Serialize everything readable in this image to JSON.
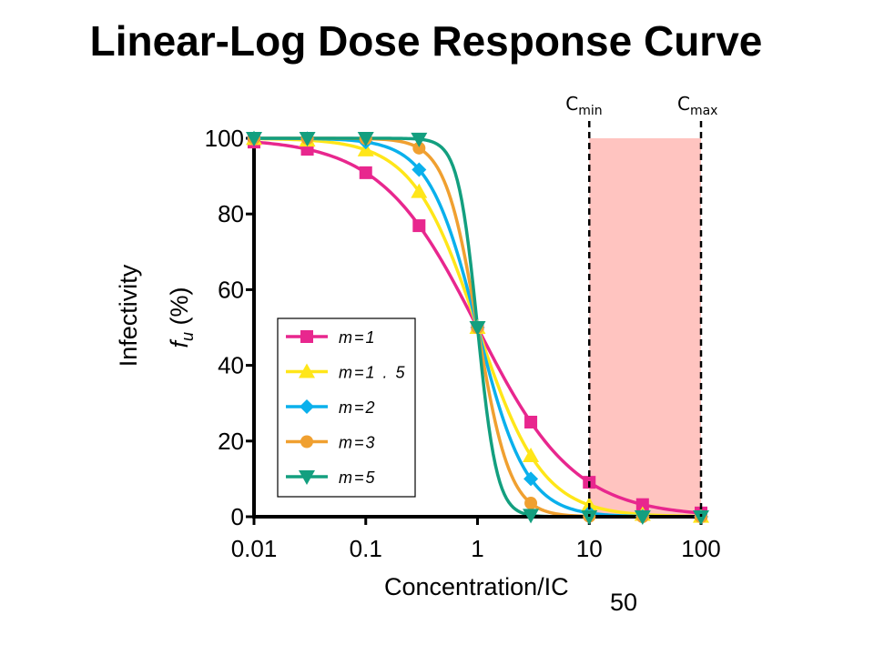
{
  "chart_data": {
    "type": "line",
    "title": "Linear-Log Dose Response Curve",
    "xlabel": "Concentration/IC",
    "xlabel_subscript": "50",
    "ylabel_line1": "Infectivity",
    "ylabel_line2_var": "f",
    "ylabel_line2_sub": "u",
    "ylabel_line2_rest": " (%)",
    "xscale": "log",
    "xlim": [
      0.01,
      100
    ],
    "ylim": [
      0,
      100
    ],
    "x_ticks": [
      0.01,
      0.1,
      1,
      10,
      100
    ],
    "x_tick_labels": [
      "0.01",
      "0.1",
      "1",
      "10",
      "100"
    ],
    "y_ticks": [
      0,
      20,
      40,
      60,
      80,
      100
    ],
    "y_tick_labels": [
      "0",
      "20",
      "40",
      "60",
      "80",
      "100"
    ],
    "grid": false,
    "legend_position": "center-left",
    "x": [
      0.01,
      0.03,
      0.1,
      0.3,
      1,
      3,
      10,
      30,
      100
    ],
    "series": [
      {
        "name": "m=1",
        "label": "m=1",
        "slope": 1,
        "color": "#e8278e",
        "marker": "square",
        "values": [
          99.0,
          97.1,
          90.9,
          76.9,
          50.0,
          25.0,
          9.1,
          3.2,
          1.0
        ]
      },
      {
        "name": "m=1.5",
        "label": "m=1 . 5",
        "slope": 1.5,
        "color": "#ffe619",
        "marker": "triangle-up",
        "values": [
          99.9,
          99.5,
          96.9,
          85.9,
          50.0,
          16.1,
          3.1,
          0.6,
          0.1
        ]
      },
      {
        "name": "m=2",
        "label": "m=2",
        "slope": 2,
        "color": "#0ab0ec",
        "marker": "diamond",
        "values": [
          100.0,
          99.9,
          99.0,
          91.7,
          50.0,
          10.0,
          1.0,
          0.1,
          0.0
        ]
      },
      {
        "name": "m=3",
        "label": "m=3",
        "slope": 3,
        "color": "#f0a030",
        "marker": "circle",
        "values": [
          100.0,
          100.0,
          99.9,
          97.4,
          50.0,
          3.6,
          0.1,
          0.0,
          0.0
        ]
      },
      {
        "name": "m=5",
        "label": "m=5",
        "slope": 5,
        "color": "#139f7f",
        "marker": "triangle-down",
        "values": [
          100.0,
          100.0,
          100.0,
          99.8,
          50.0,
          0.4,
          0.0,
          0.0,
          0.0
        ]
      }
    ],
    "shaded_region": {
      "x_start": 10,
      "x_end": 100,
      "y_top": 100,
      "color": "#ffc4c0"
    },
    "annotations": [
      {
        "text": "C",
        "subscript": "min",
        "x": 10
      },
      {
        "text": "C",
        "subscript": "max",
        "x": 100
      }
    ]
  }
}
